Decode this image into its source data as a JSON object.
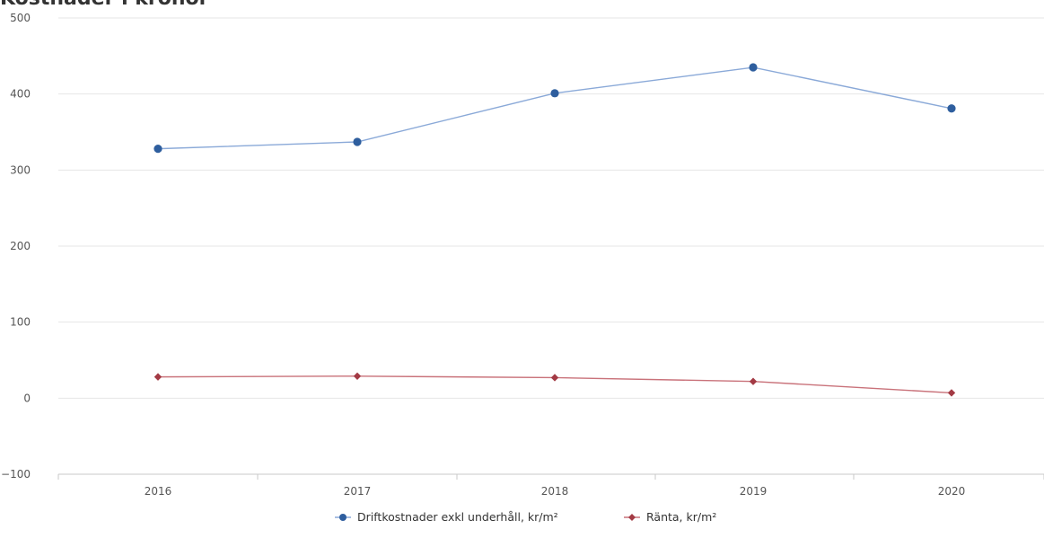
{
  "chart_data": {
    "type": "line",
    "title_fragment": "Kostnader i kronor",
    "categories": [
      "2016",
      "2017",
      "2018",
      "2019",
      "2020"
    ],
    "ylim": [
      -100,
      500
    ],
    "yticks": [
      -100,
      0,
      100,
      200,
      300,
      400,
      500
    ],
    "grid": true,
    "legend_position": "bottom",
    "series": [
      {
        "name": "Driftkostnader exkl underhåll, kr/m²",
        "values": [
          328,
          337,
          401,
          435,
          381
        ],
        "color": "#8aa9d8",
        "marker_color": "#2e5e9e",
        "marker": "circle"
      },
      {
        "name": "Ränta, kr/m²",
        "values": [
          28,
          29,
          27,
          22,
          7
        ],
        "color": "#c9727a",
        "marker_color": "#a33a44",
        "marker": "diamond"
      }
    ]
  }
}
